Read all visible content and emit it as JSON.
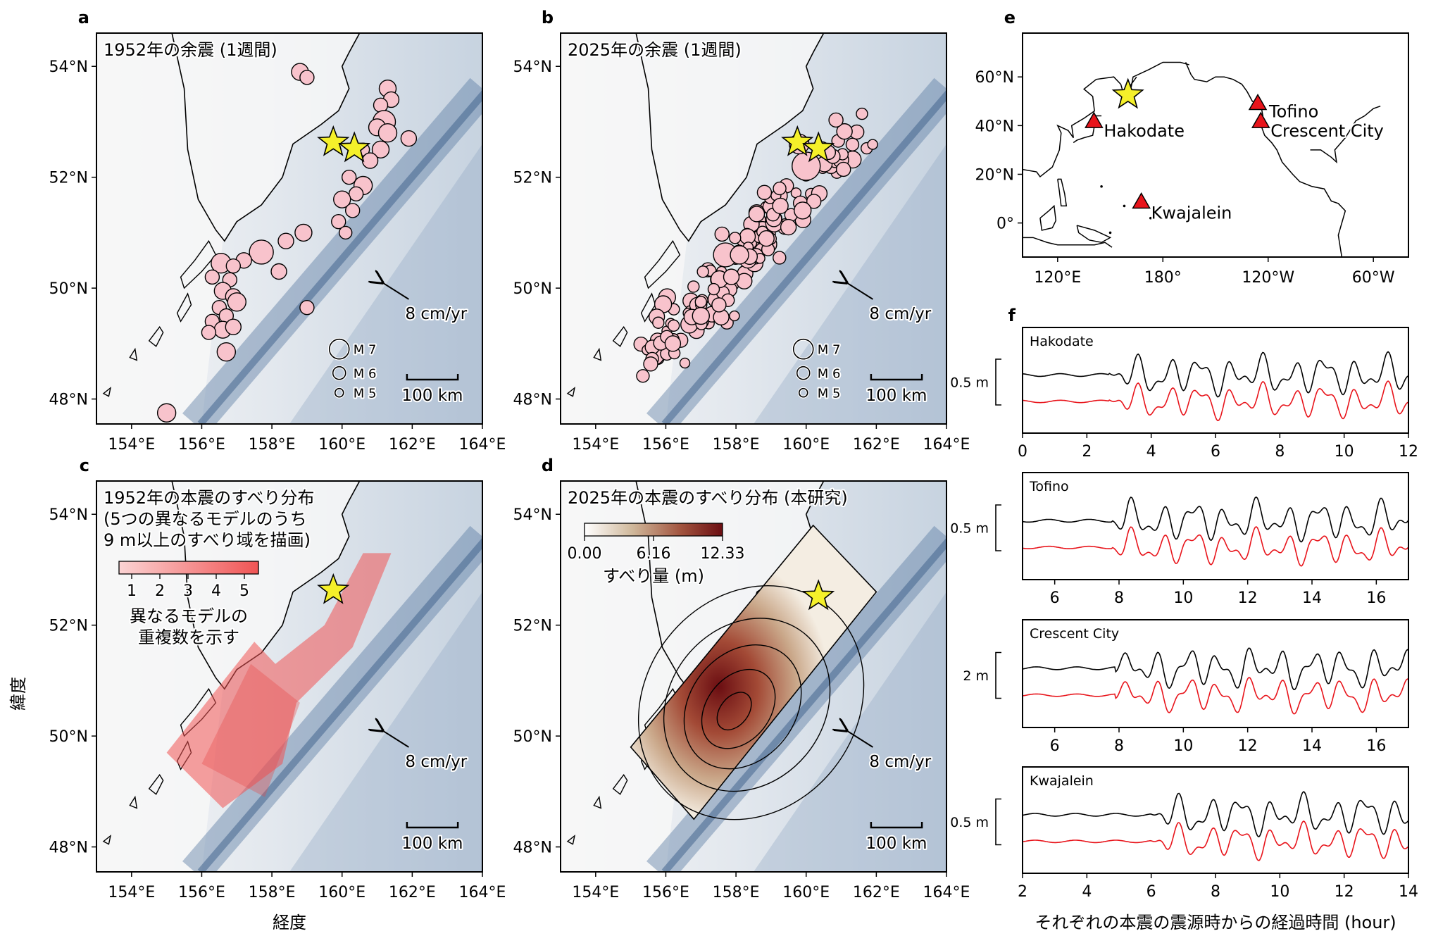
{
  "panels": {
    "a": {
      "letter": "a",
      "title": "1952年の余震 (1週間)",
      "velocity": "8 cm/yr",
      "scale": "100 km",
      "legend": [
        "M 7",
        "M 6",
        "M 5"
      ]
    },
    "b": {
      "letter": "b",
      "title": "2025年の余震 (1週間)",
      "velocity": "8 cm/yr",
      "scale": "100 km",
      "legend": [
        "M 7",
        "M 6",
        "M 5"
      ]
    },
    "c": {
      "letter": "c",
      "title_lines": [
        "1952年の本震のすべり分布",
        "(5つの異なるモデルのうち",
        "9 m以上のすべり域を描画)"
      ],
      "cbar_ticks": [
        "1",
        "2",
        "3",
        "4",
        "5"
      ],
      "cbar_label_lines": [
        "異なるモデルの",
        "重複数を示す"
      ],
      "velocity": "8 cm/yr",
      "scale": "100 km"
    },
    "d": {
      "letter": "d",
      "title": "2025年の本震のすべり分布 (本研究)",
      "cbar_ticks": [
        "0.00",
        "6.16",
        "12.33"
      ],
      "cbar_label": "すべり量 (m)",
      "velocity": "8 cm/yr",
      "scale": "100 km"
    },
    "e": {
      "letter": "e",
      "y_ticks": [
        "60°N",
        "40°N",
        "20°N",
        "0°"
      ],
      "x_ticks": [
        "120°E",
        "180°",
        "120°W",
        "60°W"
      ],
      "stations": [
        "Tofino",
        "Hakodate",
        "Crescent City",
        "Kwajalein"
      ]
    },
    "f": {
      "letter": "f",
      "xlabel": "それぞれの本震の震源時からの経過時間 (hour)"
    }
  },
  "map_axes": {
    "lon_ticks": [
      "154°E",
      "156°E",
      "158°E",
      "160°E",
      "162°E",
      "164°E"
    ],
    "lat_ticks": [
      "54°N",
      "52°N",
      "50°N",
      "48°N"
    ],
    "xlabel": "経度",
    "ylabel": "緯度"
  },
  "tide_panels": [
    {
      "station": "Hakodate",
      "scale_label": "0.5 m",
      "x_ticks": [
        "0",
        "2",
        "4",
        "6",
        "8",
        "10",
        "12"
      ]
    },
    {
      "station": "Tofino",
      "scale_label": "0.5 m",
      "x_ticks": [
        "6",
        "8",
        "10",
        "12",
        "14",
        "16"
      ]
    },
    {
      "station": "Crescent City",
      "scale_label": "2 m",
      "x_ticks": [
        "6",
        "8",
        "10",
        "12",
        "14",
        "16"
      ]
    },
    {
      "station": "Kwajalein",
      "scale_label": "0.5 m",
      "x_ticks": [
        "2",
        "4",
        "6",
        "8",
        "10",
        "12",
        "14"
      ]
    }
  ],
  "colors": {
    "star": "#f5f02a",
    "aftershock": "#f8c3cc",
    "tide_obs": "#000000",
    "tide_syn": "#e8141b",
    "triangle": "#e8141b"
  }
}
